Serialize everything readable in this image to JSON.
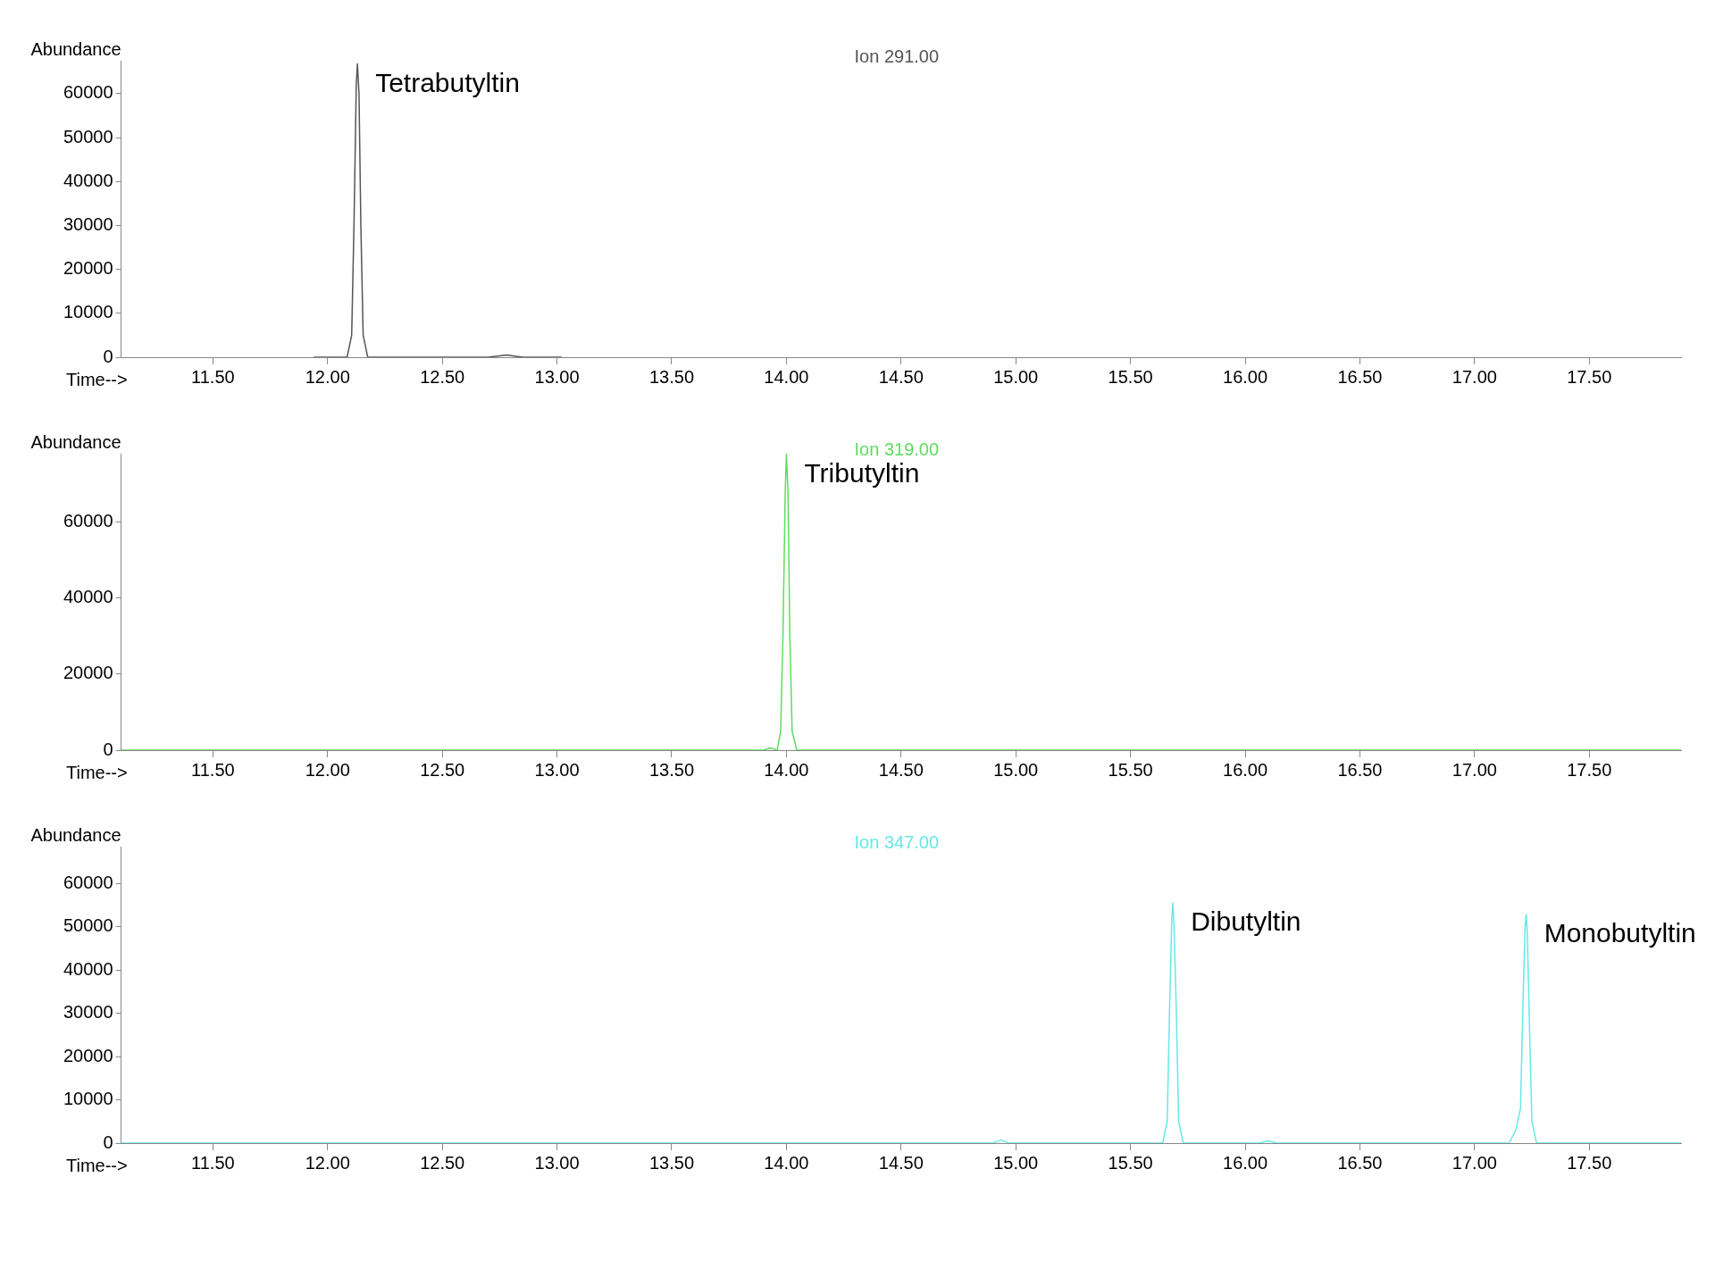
{
  "chart_data": [
    {
      "type": "line",
      "title": "Ion 291.00",
      "xlabel": "Time-->",
      "ylabel": "Abundance",
      "xlim": [
        11.1,
        17.9
      ],
      "xticks": [
        {
          "value": 11.5,
          "label": "11.50"
        },
        {
          "value": 12,
          "label": "12.00"
        },
        {
          "value": 12.5,
          "label": "12.50"
        },
        {
          "value": 13,
          "label": "13.00"
        },
        {
          "value": 13.5,
          "label": "13.50"
        },
        {
          "value": 14,
          "label": "14.00"
        },
        {
          "value": 14.5,
          "label": "14.50"
        },
        {
          "value": 15,
          "label": "15.00"
        },
        {
          "value": 15.5,
          "label": "15.50"
        },
        {
          "value": 16,
          "label": "16.00"
        },
        {
          "value": 16.5,
          "label": "16.50"
        },
        {
          "value": 17,
          "label": "17.00"
        },
        {
          "value": 17.5,
          "label": "17.50"
        }
      ],
      "ylim": [
        0,
        67500
      ],
      "yticks": [
        0,
        10000,
        20000,
        30000,
        40000,
        50000,
        60000
      ],
      "grid": false,
      "legend": false,
      "marker": "none",
      "line_style": "solid",
      "series": [
        {
          "color": "#555555",
          "x": [
            11.94,
            12.085,
            12.105,
            12.115,
            12.125,
            12.13,
            12.137,
            12.145,
            12.155,
            12.175,
            12.7,
            12.78,
            12.85,
            13.02
          ],
          "values": [
            0,
            0,
            5000,
            30000,
            62000,
            66800,
            60000,
            30000,
            5000,
            0,
            0,
            500,
            0,
            0
          ]
        }
      ],
      "annotations": [
        {
          "text": "Tetrabutyltin",
          "x": 12.13,
          "y": 66800
        }
      ]
    },
    {
      "type": "line",
      "title": "Ion 319.00",
      "xlabel": "Time-->",
      "ylabel": "Abundance",
      "xlim": [
        11.1,
        17.9
      ],
      "xticks": [
        {
          "value": 11.5,
          "label": "11.50"
        },
        {
          "value": 12,
          "label": "12.00"
        },
        {
          "value": 12.5,
          "label": "12.50"
        },
        {
          "value": 13,
          "label": "13.00"
        },
        {
          "value": 13.5,
          "label": "13.50"
        },
        {
          "value": 14,
          "label": "14.00"
        },
        {
          "value": 14.5,
          "label": "14.50"
        },
        {
          "value": 15,
          "label": "15.00"
        },
        {
          "value": 15.5,
          "label": "15.50"
        },
        {
          "value": 16,
          "label": "16.00"
        },
        {
          "value": 16.5,
          "label": "16.50"
        },
        {
          "value": 17,
          "label": "17.00"
        },
        {
          "value": 17.5,
          "label": "17.50"
        }
      ],
      "ylim": [
        0,
        78000
      ],
      "yticks": [
        0,
        20000,
        40000,
        60000
      ],
      "grid": false,
      "legend": false,
      "marker": "none",
      "line_style": "solid",
      "series": [
        {
          "color": "#5fdc5f",
          "x": [
            11.1,
            13.9,
            13.93,
            13.96,
            13.975,
            13.985,
            13.995,
            14.0,
            14.007,
            14.015,
            14.025,
            14.045,
            14.1,
            17.9
          ],
          "values": [
            0,
            0,
            600,
            0,
            5000,
            30000,
            68000,
            77800,
            68000,
            30000,
            5000,
            0,
            0,
            0
          ]
        }
      ],
      "annotations": [
        {
          "text": "Tributyltin",
          "x": 14.0,
          "y": 77800
        }
      ]
    },
    {
      "type": "line",
      "title": "Ion 347.00",
      "xlabel": "Time-->",
      "ylabel": "Abundance",
      "xlim": [
        11.1,
        17.9
      ],
      "xticks": [
        {
          "value": 11.5,
          "label": "11.50"
        },
        {
          "value": 12,
          "label": "12.00"
        },
        {
          "value": 12.5,
          "label": "12.50"
        },
        {
          "value": 13,
          "label": "13.00"
        },
        {
          "value": 13.5,
          "label": "13.50"
        },
        {
          "value": 14,
          "label": "14.00"
        },
        {
          "value": 14.5,
          "label": "14.50"
        },
        {
          "value": 15,
          "label": "15.00"
        },
        {
          "value": 15.5,
          "label": "15.50"
        },
        {
          "value": 16,
          "label": "16.00"
        },
        {
          "value": 16.5,
          "label": "16.50"
        },
        {
          "value": 17,
          "label": "17.00"
        },
        {
          "value": 17.5,
          "label": "17.50"
        }
      ],
      "ylim": [
        0,
        68500
      ],
      "yticks": [
        0,
        10000,
        20000,
        30000,
        40000,
        50000,
        60000
      ],
      "grid": false,
      "legend": false,
      "marker": "none",
      "line_style": "solid",
      "series": [
        {
          "color": "#66e8e8",
          "x": [
            11.1,
            14.9,
            14.935,
            14.97,
            15.64,
            15.66,
            15.67,
            15.68,
            15.685,
            15.69,
            15.7,
            15.71,
            15.73,
            16.06,
            16.1,
            16.14,
            17.15,
            17.18,
            17.2,
            17.21,
            17.22,
            17.225,
            17.23,
            17.24,
            17.25,
            17.27,
            17.9
          ],
          "values": [
            0,
            0,
            700,
            0,
            0,
            5000,
            30000,
            52000,
            55500,
            50000,
            30000,
            5000,
            0,
            0,
            500,
            0,
            0,
            3000,
            8000,
            30000,
            50000,
            52800,
            48000,
            25000,
            5000,
            0,
            0
          ]
        }
      ],
      "annotations": [
        {
          "text": "Dibutyltin",
          "x": 15.685,
          "y": 55500
        },
        {
          "text": "Monobutyltin",
          "x": 17.225,
          "y": 52800
        }
      ]
    }
  ]
}
